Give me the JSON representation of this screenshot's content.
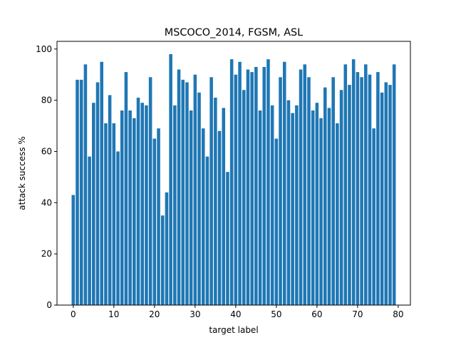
{
  "chart_data": {
    "type": "bar",
    "title": "MSCOCO_2014, FGSM, ASL",
    "xlabel": "target label",
    "ylabel": "attack success %",
    "x": [
      0,
      1,
      2,
      3,
      4,
      5,
      6,
      7,
      8,
      9,
      10,
      11,
      12,
      13,
      14,
      15,
      16,
      17,
      18,
      19,
      20,
      21,
      22,
      23,
      24,
      25,
      26,
      27,
      28,
      29,
      30,
      31,
      32,
      33,
      34,
      35,
      36,
      37,
      38,
      39,
      40,
      41,
      42,
      43,
      44,
      45,
      46,
      47,
      48,
      49,
      50,
      51,
      52,
      53,
      54,
      55,
      56,
      57,
      58,
      59,
      60,
      61,
      62,
      63,
      64,
      65,
      66,
      67,
      68,
      69,
      70,
      71,
      72,
      73,
      74,
      75,
      76,
      77,
      78,
      79
    ],
    "values": [
      43,
      88,
      88,
      94,
      58,
      79,
      87,
      95,
      71,
      82,
      71,
      60,
      76,
      91,
      76,
      73,
      81,
      79,
      78,
      89,
      65,
      69,
      35,
      44,
      98,
      78,
      92,
      88,
      87,
      76,
      90,
      83,
      69,
      58,
      89,
      81,
      68,
      77,
      52,
      96,
      90,
      95,
      84,
      92,
      91,
      93,
      76,
      93,
      96,
      78,
      65,
      89,
      95,
      80,
      75,
      78,
      92,
      94,
      89,
      76,
      79,
      73,
      85,
      77,
      89,
      71,
      84,
      94,
      86,
      96,
      91,
      89,
      94,
      90,
      69,
      91,
      83,
      87,
      86,
      94
    ],
    "xlim": [
      -4,
      83
    ],
    "ylim": [
      0,
      103
    ],
    "xticks": [
      0,
      10,
      20,
      30,
      40,
      50,
      60,
      70,
      80
    ],
    "yticks": [
      0,
      20,
      40,
      60,
      80,
      100
    ],
    "bar_color": "#1f77b4",
    "grid": false
  }
}
